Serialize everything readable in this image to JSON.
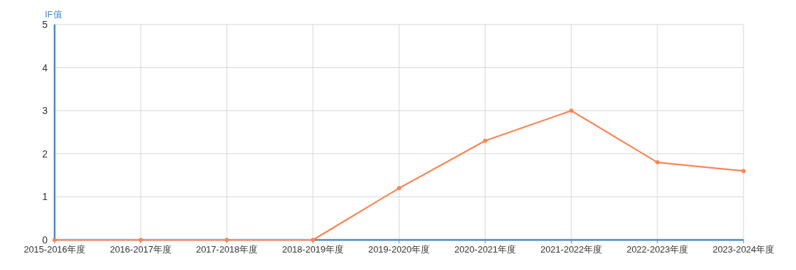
{
  "chart_data": {
    "type": "line",
    "ylabel": "IF值",
    "categories": [
      "2015-2016年度",
      "2016-2017年度",
      "2017-2018年度",
      "2018-2019年度",
      "2019-2020年度",
      "2020-2021年度",
      "2021-2022年度",
      "2022-2023年度",
      "2023-2024年度"
    ],
    "series": [
      {
        "color": "#fc8452",
        "values": [
          0,
          0,
          0,
          0,
          1.2,
          2.3,
          3.0,
          1.8,
          1.6
        ]
      }
    ],
    "ylim": [
      0,
      5
    ],
    "yticks": [
      0,
      1,
      2,
      3,
      4,
      5
    ],
    "grid": true,
    "marker": "circle",
    "line_style": "solid"
  }
}
